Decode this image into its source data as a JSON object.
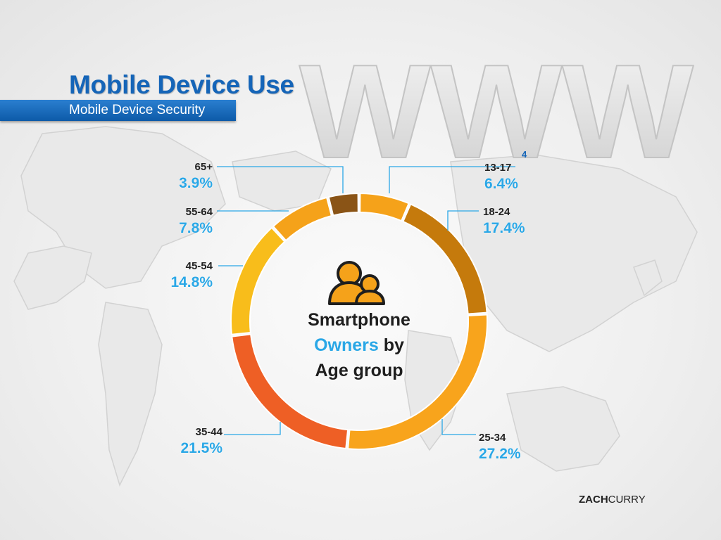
{
  "slide": {
    "title": "Mobile Device Use",
    "subtitle": "Mobile Device Security",
    "footnote": "4",
    "brand_bold": "ZACH",
    "brand_rest": "CURRY"
  },
  "background_text": "WWW",
  "center_label": {
    "line1": "Smartphone",
    "line2_highlight": "Owners",
    "line2_rest": " by",
    "line3": "Age group"
  },
  "colors": {
    "accent_blue": "#1565b8",
    "label_blue": "#2aa7e6"
  },
  "icons": [
    "people-icon"
  ],
  "chart_data": {
    "type": "pie",
    "style": "donut",
    "title": "Smartphone Owners by Age group",
    "categories": [
      "13-17",
      "18-24",
      "25-34",
      "35-44",
      "45-54",
      "55-64",
      "65+"
    ],
    "values": [
      6.4,
      17.4,
      27.2,
      21.5,
      14.8,
      7.8,
      3.9
    ],
    "labels": [
      "6.4%",
      "17.4%",
      "27.2%",
      "21.5%",
      "14.8%",
      "7.8%",
      "3.9%"
    ],
    "colors": [
      "#f5a21a",
      "#c57a0c",
      "#f8a41c",
      "#ee5f25",
      "#f8bd1b",
      "#f5a21a",
      "#8a5416"
    ],
    "unit": "%"
  }
}
